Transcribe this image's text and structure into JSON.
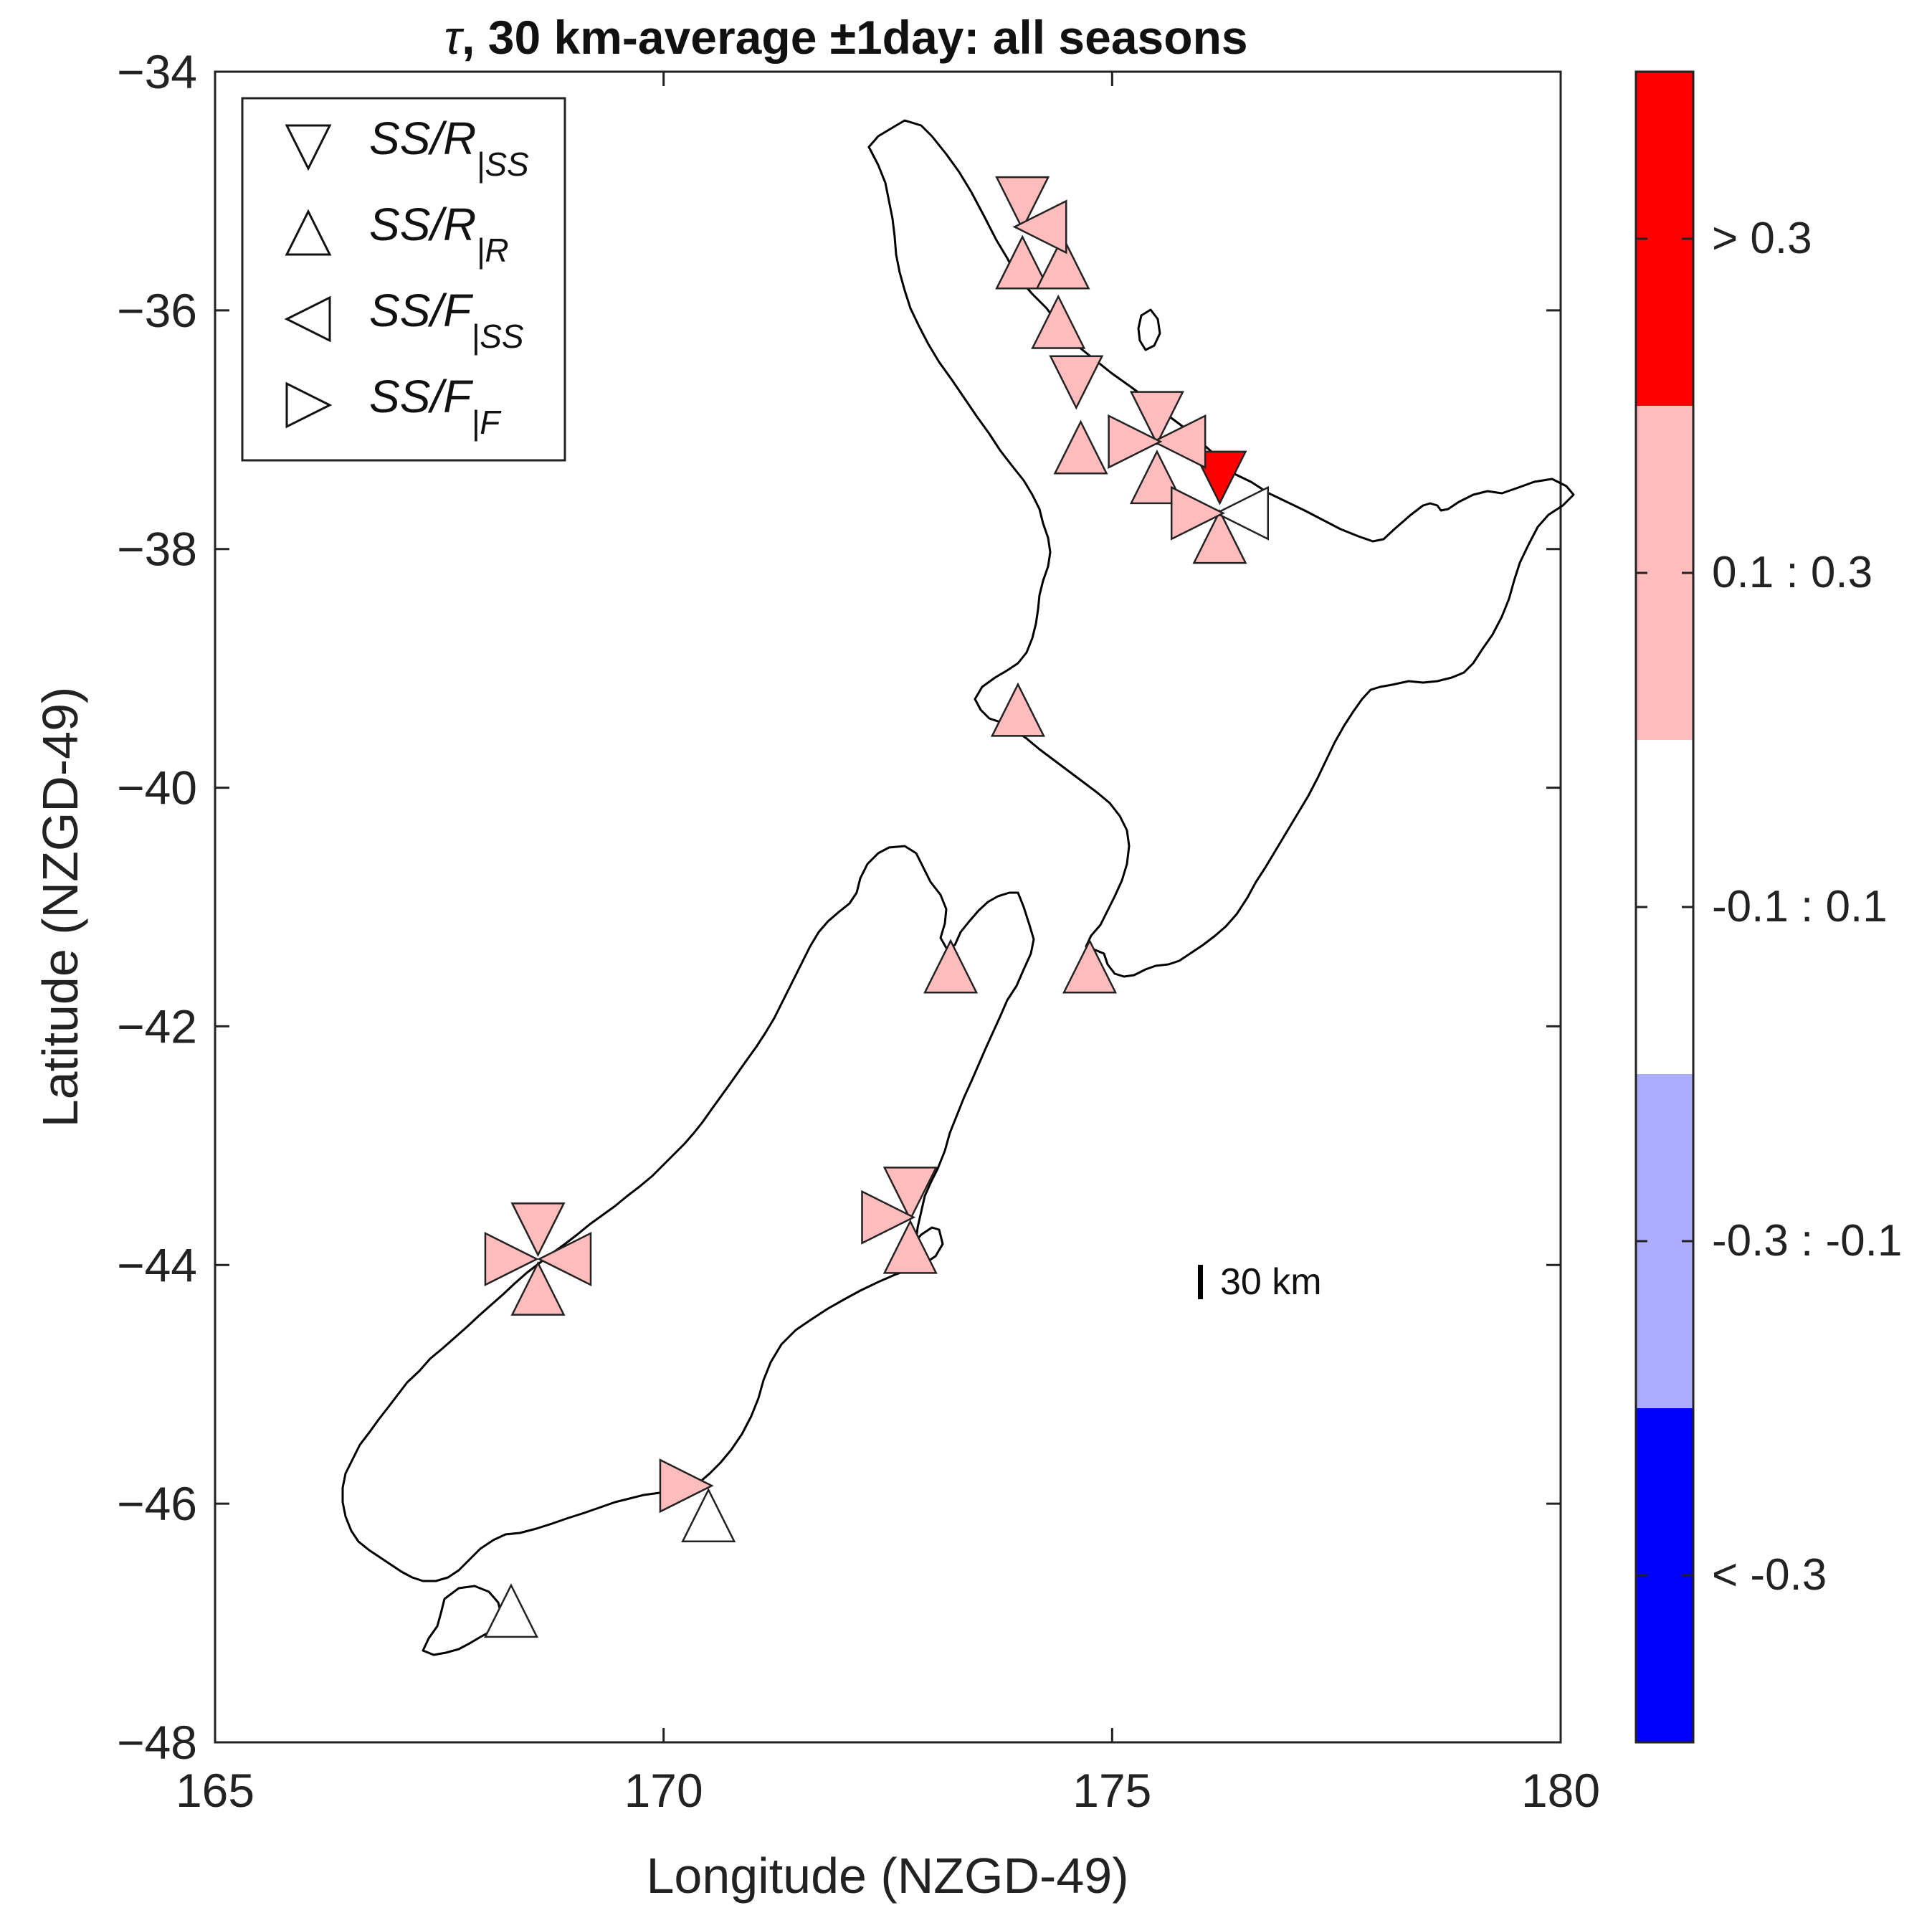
{
  "title": {
    "symbol": "τ",
    "text": ", 30 km-average ±1day: all seasons"
  },
  "axes": {
    "xlabel": "Longitude (NZGD-49)",
    "ylabel": "Latitude (NZGD-49)",
    "xlim": [
      165,
      180
    ],
    "ylim": [
      -48,
      -34
    ],
    "xticks": [
      165,
      170,
      175,
      180
    ],
    "yticks": [
      -34,
      -36,
      -38,
      -40,
      -42,
      -44,
      -46,
      -48
    ],
    "xtick_labels": [
      "165",
      "170",
      "175",
      "180"
    ],
    "ytick_labels": [
      "−34",
      "−36",
      "−38",
      "−40",
      "−42",
      "−44",
      "−46",
      "−48"
    ]
  },
  "legend": {
    "entries": [
      {
        "shape": "down",
        "main": "SS/R",
        "sub": "|SS"
      },
      {
        "shape": "up",
        "main": "SS/R",
        "sub": "|R"
      },
      {
        "shape": "left",
        "main": "SS/F",
        "sub": "|SS"
      },
      {
        "shape": "right",
        "main": "SS/F",
        "sub": "|F"
      }
    ]
  },
  "colorbar": {
    "bins": [
      {
        "label": "> 0.3",
        "color": "#ff0000"
      },
      {
        "label": "0.1 : 0.3",
        "color": "#ffbcbc"
      },
      {
        "label": "-0.1 : 0.1",
        "color": "#ffffff"
      },
      {
        "label": "-0.3 : -0.1",
        "color": "#adadff"
      },
      {
        "label": "< -0.3",
        "color": "#0000ff"
      }
    ]
  },
  "scale_bar": {
    "label": "30 km",
    "lon": 176.05,
    "lat": -44.15
  },
  "chart_data": {
    "type": "scatter",
    "title": "τ, 30 km-average ±1day: all seasons",
    "xlabel": "Longitude (NZGD-49)",
    "ylabel": "Latitude (NZGD-49)",
    "xlim": [
      165,
      180
    ],
    "ylim": [
      -48,
      -34
    ],
    "series": [
      {
        "name": "SS/R|SS",
        "shape": "down",
        "points": [
          {
            "lon": 174.0,
            "lat": -35.1,
            "bin": "0.1 : 0.3"
          },
          {
            "lon": 174.6,
            "lat": -36.6,
            "bin": "0.1 : 0.3"
          },
          {
            "lon": 175.5,
            "lat": -36.9,
            "bin": "0.1 : 0.3"
          },
          {
            "lon": 176.2,
            "lat": -37.4,
            "bin": "> 0.3"
          },
          {
            "lon": 168.6,
            "lat": -43.7,
            "bin": "0.1 : 0.3"
          },
          {
            "lon": 172.75,
            "lat": -43.4,
            "bin": "0.1 : 0.3"
          }
        ]
      },
      {
        "name": "SS/R|R",
        "shape": "up",
        "points": [
          {
            "lon": 174.0,
            "lat": -35.6,
            "bin": "0.1 : 0.3"
          },
          {
            "lon": 174.45,
            "lat": -35.6,
            "bin": "0.1 : 0.3"
          },
          {
            "lon": 174.4,
            "lat": -36.1,
            "bin": "0.1 : 0.3"
          },
          {
            "lon": 174.65,
            "lat": -37.15,
            "bin": "0.1 : 0.3"
          },
          {
            "lon": 175.5,
            "lat": -37.4,
            "bin": "0.1 : 0.3"
          },
          {
            "lon": 176.2,
            "lat": -37.9,
            "bin": "0.1 : 0.3"
          },
          {
            "lon": 173.95,
            "lat": -39.35,
            "bin": "0.1 : 0.3"
          },
          {
            "lon": 173.2,
            "lat": -41.5,
            "bin": "0.1 : 0.3"
          },
          {
            "lon": 174.75,
            "lat": -41.5,
            "bin": "0.1 : 0.3"
          },
          {
            "lon": 168.6,
            "lat": -44.2,
            "bin": "0.1 : 0.3"
          },
          {
            "lon": 172.75,
            "lat": -43.85,
            "bin": "0.1 : 0.3"
          },
          {
            "lon": 170.5,
            "lat": -46.1,
            "bin": "-0.1 : 0.1"
          },
          {
            "lon": 168.3,
            "lat": -46.9,
            "bin": "-0.1 : 0.1"
          }
        ]
      },
      {
        "name": "SS/F|SS",
        "shape": "left",
        "points": [
          {
            "lon": 174.2,
            "lat": -35.3,
            "bin": "0.1 : 0.3"
          },
          {
            "lon": 175.75,
            "lat": -37.1,
            "bin": "0.1 : 0.3"
          },
          {
            "lon": 176.45,
            "lat": -37.7,
            "bin": "-0.1 : 0.1"
          },
          {
            "lon": 168.9,
            "lat": -43.95,
            "bin": "0.1 : 0.3"
          }
        ]
      },
      {
        "name": "SS/F|F",
        "shape": "right",
        "points": [
          {
            "lon": 175.25,
            "lat": -37.1,
            "bin": "0.1 : 0.3"
          },
          {
            "lon": 175.95,
            "lat": -37.7,
            "bin": "0.1 : 0.3"
          },
          {
            "lon": 168.3,
            "lat": -43.95,
            "bin": "0.1 : 0.3"
          },
          {
            "lon": 172.5,
            "lat": -43.6,
            "bin": "0.1 : 0.3"
          },
          {
            "lon": 170.25,
            "lat": -45.85,
            "bin": "0.1 : 0.3"
          }
        ]
      }
    ]
  }
}
